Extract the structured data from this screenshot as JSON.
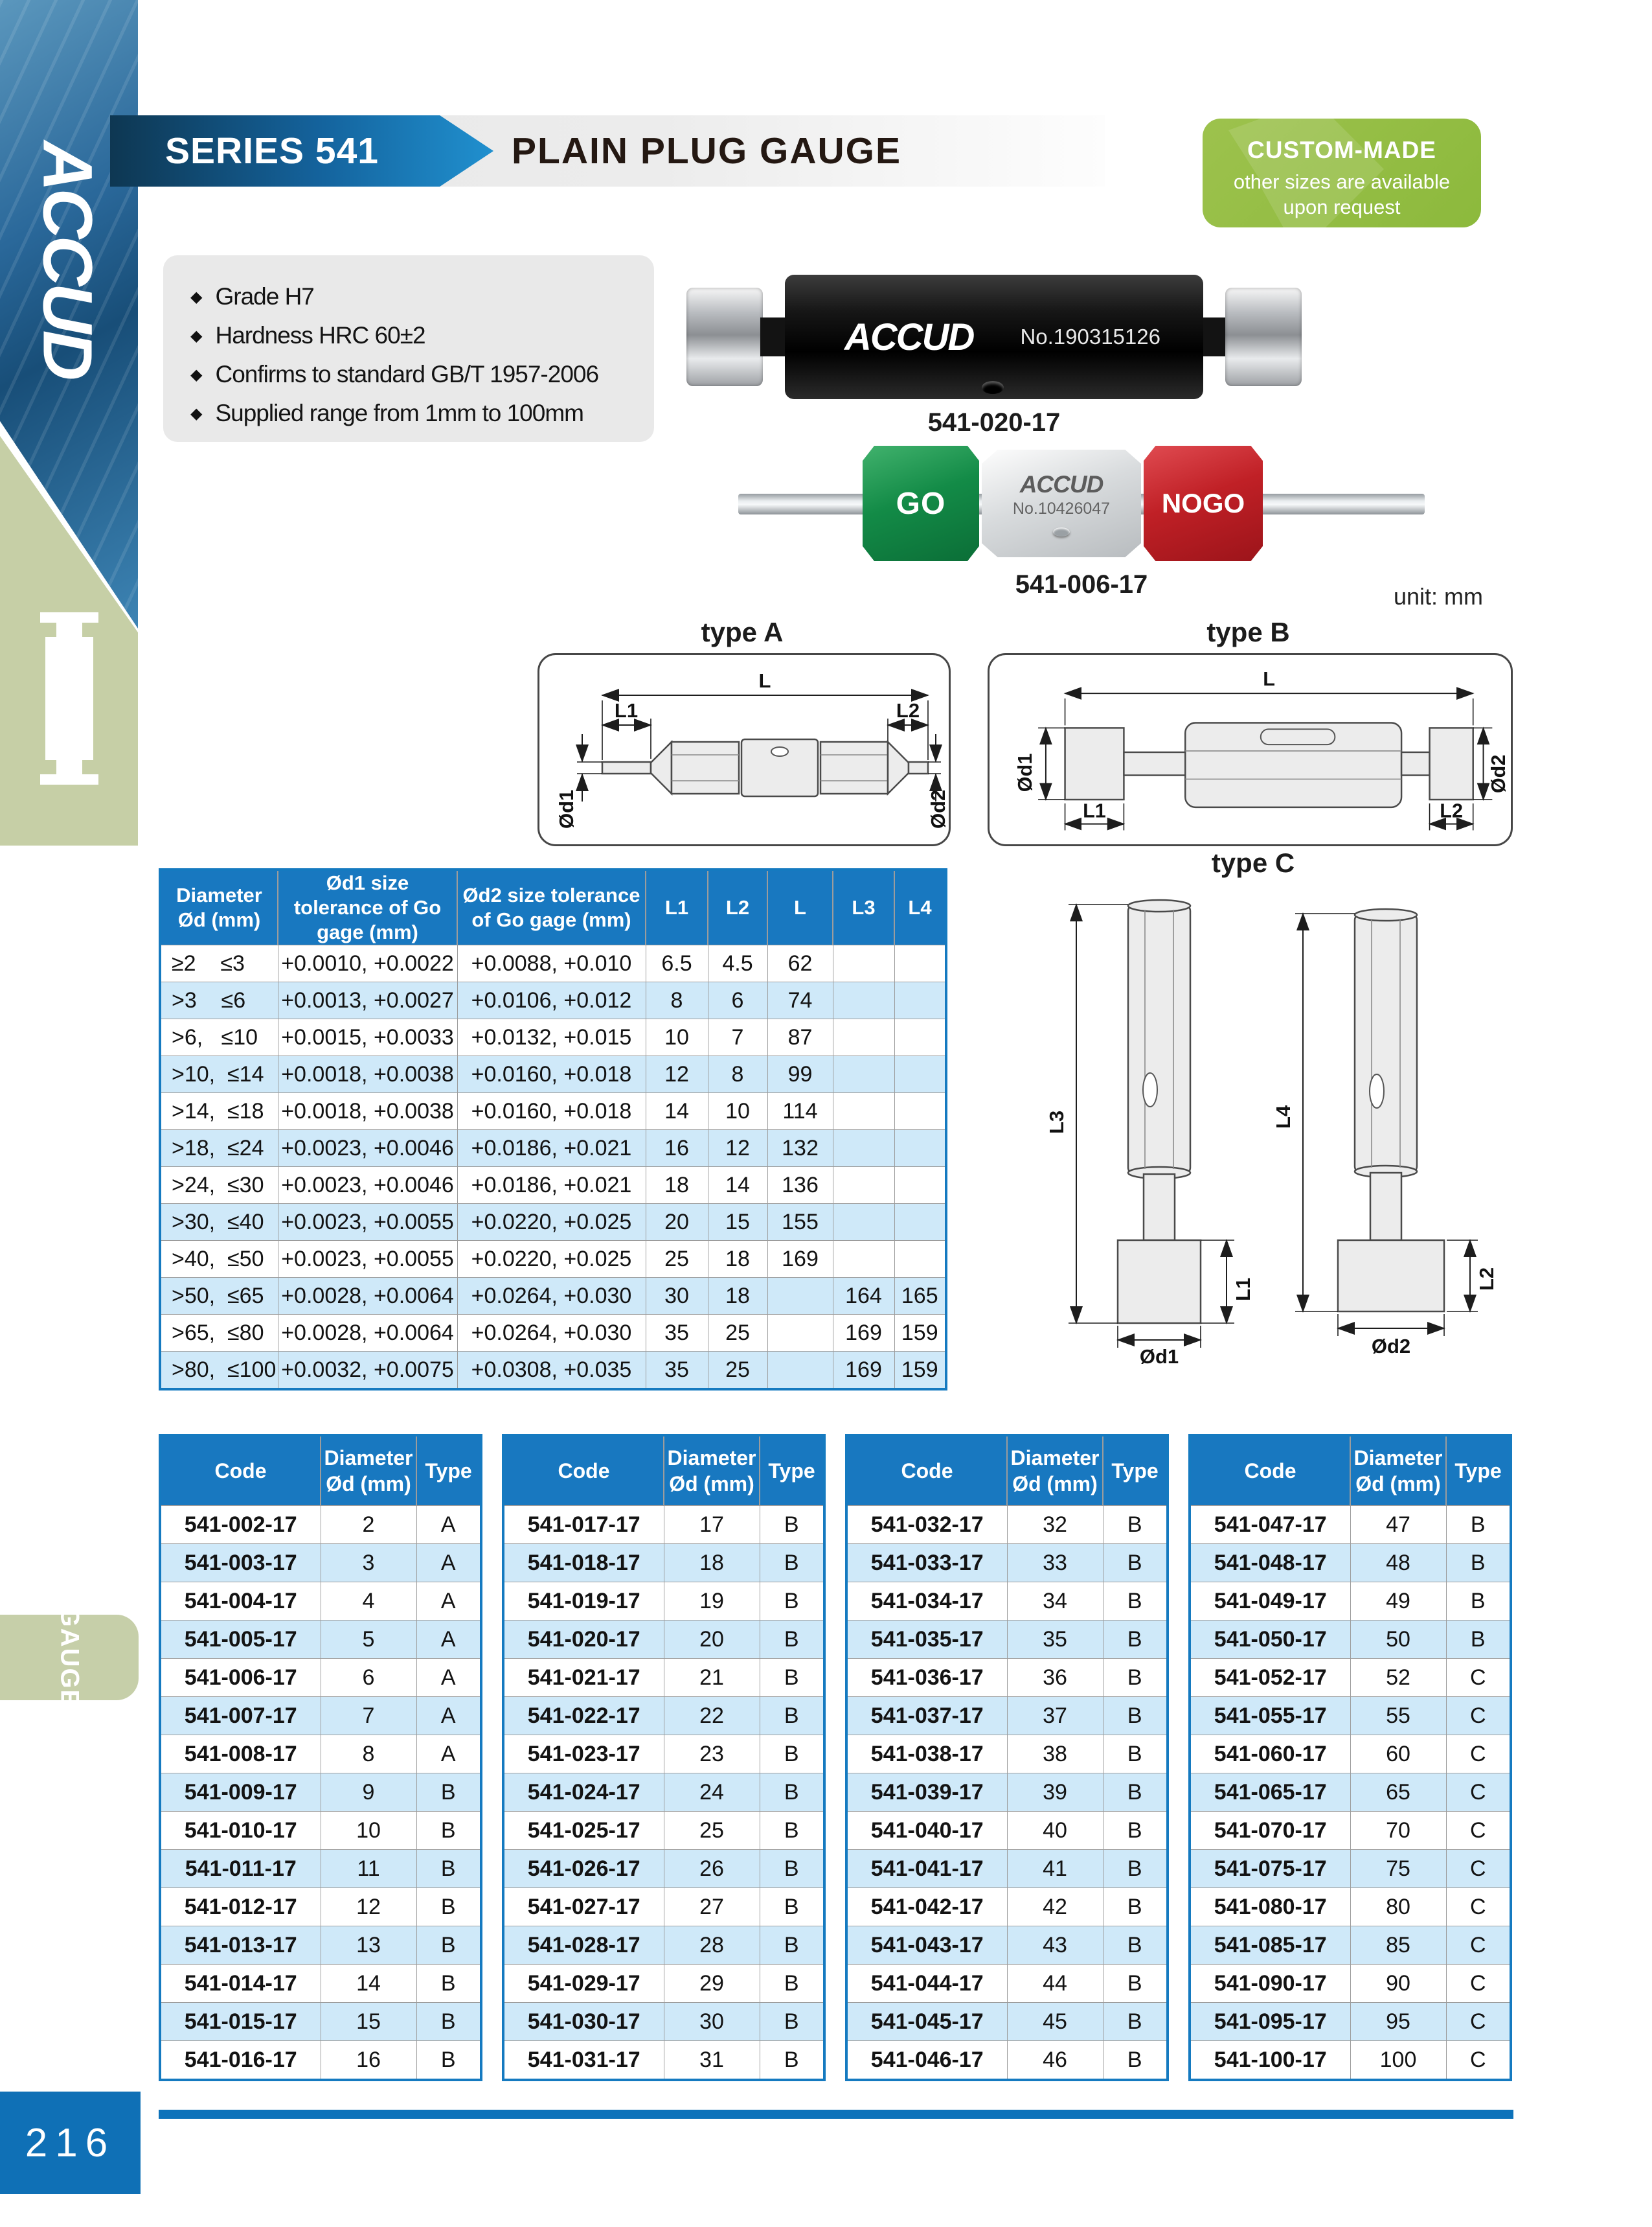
{
  "page": {
    "number": "216",
    "unit_label": "unit: mm"
  },
  "sidebar": {
    "brand": "ACCUD",
    "tab_label": "GAUGE"
  },
  "header": {
    "series": "SERIES 541",
    "title": "PLAIN PLUG GAUGE"
  },
  "badge": {
    "title": "CUSTOM-MADE",
    "line1": "other sizes are available",
    "line2": "upon request"
  },
  "features": {
    "items": [
      "Grade H7",
      "Hardness HRC 60±2",
      "Confirms to standard GB/T 1957-2006",
      "Supplied range from 1mm to 100mm"
    ]
  },
  "products": {
    "plug": {
      "brand": "ACCUD",
      "serial": "No.190315126",
      "caption": "541-020-17"
    },
    "gonogo": {
      "go": "GO",
      "brand": "ACCUD",
      "serial": "No.10426047",
      "nogo": "NOGO",
      "caption": "541-006-17"
    }
  },
  "diagrams": {
    "type_a": "type A",
    "type_b": "type B",
    "type_c": "type C",
    "labels": {
      "L": "L",
      "L1": "L1",
      "L2": "L2",
      "L3": "L3",
      "L4": "L4",
      "d1": "Ød1",
      "d2": "Ød2"
    }
  },
  "spec_table": {
    "headers": [
      "Diameter Ød (mm)",
      "Ød1 size tolerance of Go gage (mm)",
      "Ød2 size tolerance of Go gage (mm)",
      "L1",
      "L2",
      "L",
      "L3",
      "L4"
    ],
    "rows": [
      [
        "≥2    ≤3",
        "+0.0010, +0.0022",
        "+0.0088, +0.010",
        "6.5",
        "4.5",
        "62",
        "",
        ""
      ],
      [
        ">3    ≤6",
        "+0.0013, +0.0027",
        "+0.0106, +0.012",
        "8",
        "6",
        "74",
        "",
        ""
      ],
      [
        ">6,   ≤10",
        "+0.0015, +0.0033",
        "+0.0132, +0.015",
        "10",
        "7",
        "87",
        "",
        ""
      ],
      [
        ">10,  ≤14",
        "+0.0018, +0.0038",
        "+0.0160, +0.018",
        "12",
        "8",
        "99",
        "",
        ""
      ],
      [
        ">14,  ≤18",
        "+0.0018, +0.0038",
        "+0.0160, +0.018",
        "14",
        "10",
        "114",
        "",
        ""
      ],
      [
        ">18,  ≤24",
        "+0.0023, +0.0046",
        "+0.0186, +0.021",
        "16",
        "12",
        "132",
        "",
        ""
      ],
      [
        ">24,  ≤30",
        "+0.0023, +0.0046",
        "+0.0186, +0.021",
        "18",
        "14",
        "136",
        "",
        ""
      ],
      [
        ">30,  ≤40",
        "+0.0023, +0.0055",
        "+0.0220, +0.025",
        "20",
        "15",
        "155",
        "",
        ""
      ],
      [
        ">40,  ≤50",
        "+0.0023, +0.0055",
        "+0.0220, +0.025",
        "25",
        "18",
        "169",
        "",
        ""
      ],
      [
        ">50,  ≤65",
        "+0.0028, +0.0064",
        "+0.0264, +0.030",
        "30",
        "18",
        "",
        "164",
        "165"
      ],
      [
        ">65,  ≤80",
        "+0.0028, +0.0064",
        "+0.0264, +0.030",
        "35",
        "25",
        "",
        "169",
        "159"
      ],
      [
        ">80,  ≤100",
        "+0.0032, +0.0075",
        "+0.0308, +0.035",
        "35",
        "25",
        "",
        "169",
        "159"
      ]
    ]
  },
  "code_tables": {
    "headers": {
      "code": "Code",
      "diameter": "Diameter Ød (mm)",
      "type": "Type"
    },
    "t1": {
      "rows": [
        [
          "541-002-17",
          "2",
          "A"
        ],
        [
          "541-003-17",
          "3",
          "A"
        ],
        [
          "541-004-17",
          "4",
          "A"
        ],
        [
          "541-005-17",
          "5",
          "A"
        ],
        [
          "541-006-17",
          "6",
          "A"
        ],
        [
          "541-007-17",
          "7",
          "A"
        ],
        [
          "541-008-17",
          "8",
          "A"
        ],
        [
          "541-009-17",
          "9",
          "B"
        ],
        [
          "541-010-17",
          "10",
          "B"
        ],
        [
          "541-011-17",
          "11",
          "B"
        ],
        [
          "541-012-17",
          "12",
          "B"
        ],
        [
          "541-013-17",
          "13",
          "B"
        ],
        [
          "541-014-17",
          "14",
          "B"
        ],
        [
          "541-015-17",
          "15",
          "B"
        ],
        [
          "541-016-17",
          "16",
          "B"
        ]
      ]
    },
    "t2": {
      "rows": [
        [
          "541-017-17",
          "17",
          "B"
        ],
        [
          "541-018-17",
          "18",
          "B"
        ],
        [
          "541-019-17",
          "19",
          "B"
        ],
        [
          "541-020-17",
          "20",
          "B"
        ],
        [
          "541-021-17",
          "21",
          "B"
        ],
        [
          "541-022-17",
          "22",
          "B"
        ],
        [
          "541-023-17",
          "23",
          "B"
        ],
        [
          "541-024-17",
          "24",
          "B"
        ],
        [
          "541-025-17",
          "25",
          "B"
        ],
        [
          "541-026-17",
          "26",
          "B"
        ],
        [
          "541-027-17",
          "27",
          "B"
        ],
        [
          "541-028-17",
          "28",
          "B"
        ],
        [
          "541-029-17",
          "29",
          "B"
        ],
        [
          "541-030-17",
          "30",
          "B"
        ],
        [
          "541-031-17",
          "31",
          "B"
        ]
      ]
    },
    "t3": {
      "rows": [
        [
          "541-032-17",
          "32",
          "B"
        ],
        [
          "541-033-17",
          "33",
          "B"
        ],
        [
          "541-034-17",
          "34",
          "B"
        ],
        [
          "541-035-17",
          "35",
          "B"
        ],
        [
          "541-036-17",
          "36",
          "B"
        ],
        [
          "541-037-17",
          "37",
          "B"
        ],
        [
          "541-038-17",
          "38",
          "B"
        ],
        [
          "541-039-17",
          "39",
          "B"
        ],
        [
          "541-040-17",
          "40",
          "B"
        ],
        [
          "541-041-17",
          "41",
          "B"
        ],
        [
          "541-042-17",
          "42",
          "B"
        ],
        [
          "541-043-17",
          "43",
          "B"
        ],
        [
          "541-044-17",
          "44",
          "B"
        ],
        [
          "541-045-17",
          "45",
          "B"
        ],
        [
          "541-046-17",
          "46",
          "B"
        ]
      ]
    },
    "t4": {
      "rows": [
        [
          "541-047-17",
          "47",
          "B"
        ],
        [
          "541-048-17",
          "48",
          "B"
        ],
        [
          "541-049-17",
          "49",
          "B"
        ],
        [
          "541-050-17",
          "50",
          "B"
        ],
        [
          "541-052-17",
          "52",
          "C"
        ],
        [
          "541-055-17",
          "55",
          "C"
        ],
        [
          "541-060-17",
          "60",
          "C"
        ],
        [
          "541-065-17",
          "65",
          "C"
        ],
        [
          "541-070-17",
          "70",
          "C"
        ],
        [
          "541-075-17",
          "75",
          "C"
        ],
        [
          "541-080-17",
          "80",
          "C"
        ],
        [
          "541-085-17",
          "85",
          "C"
        ],
        [
          "541-090-17",
          "90",
          "C"
        ],
        [
          "541-095-17",
          "95",
          "C"
        ],
        [
          "541-100-17",
          "100",
          "C"
        ]
      ]
    }
  }
}
